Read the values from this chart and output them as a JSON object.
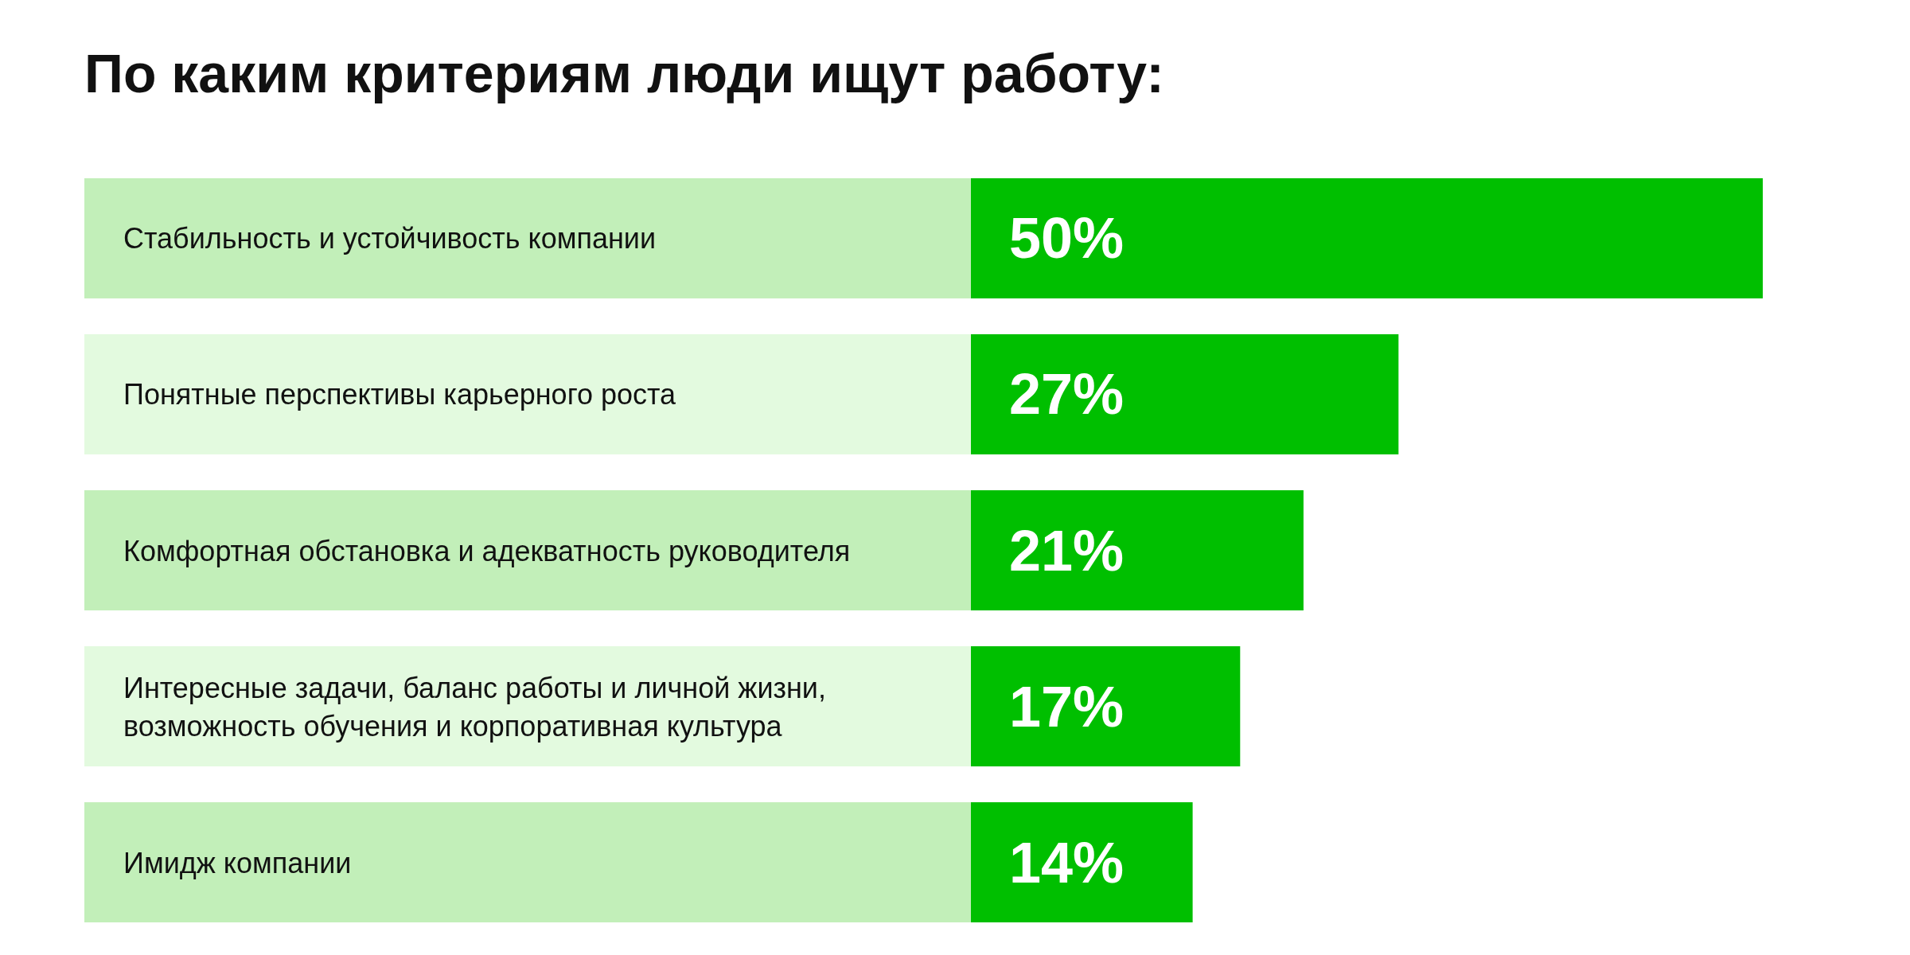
{
  "chart_data": {
    "type": "bar",
    "orientation": "horizontal",
    "title": "По каким критериям люди ищут работу:",
    "categories": [
      "Стабильность и устойчивость компании",
      "Понятные перспективы карьерного роста",
      "Комфортная обстановка и адекватность руководителя",
      "Интересные задачи, баланс работы и личной жизни, возможность обучения и корпоративная культура",
      "Имидж компании"
    ],
    "values": [
      50,
      27,
      21,
      17,
      14
    ],
    "color": "#00bf00",
    "value_labels": [
      "50%",
      "27%",
      "21%",
      "17%",
      "14%"
    ]
  }
}
